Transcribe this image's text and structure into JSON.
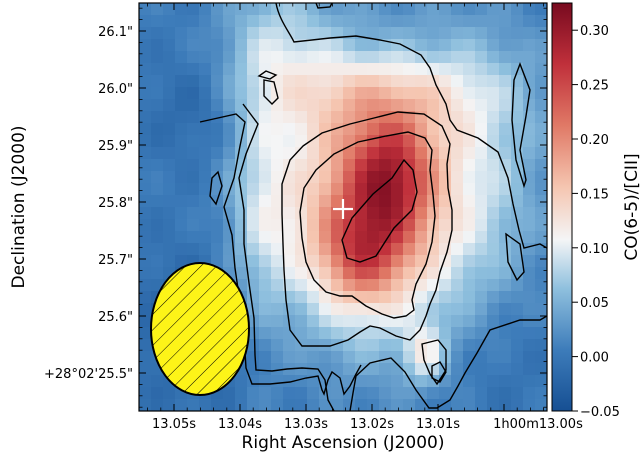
{
  "chart_data": {
    "type": "heatmap",
    "title": "",
    "xlabel": "Right Ascension (J2000)",
    "ylabel": "Declination (J2000)",
    "colorbar_label": "CO(6-5)/[CII]",
    "x_ticks": [
      "13.05s",
      "13.04s",
      "13.03s",
      "13.02s",
      "13.01s",
      "1h00m13.00s"
    ],
    "y_ticks": [
      "26.1\"",
      "26.0\"",
      "25.9\"",
      "25.8\"",
      "25.7\"",
      "25.6\"",
      "+28°02'25.5\""
    ],
    "colorbar_ticks": [
      "0.30",
      "0.25",
      "0.20",
      "0.15",
      "0.10",
      "0.05",
      "0.00",
      "−0.05"
    ],
    "colorbar_range": [
      -0.05,
      0.325
    ],
    "colormap": "RdBu_r",
    "colors": {
      "low": "#1f5fa8",
      "mid": "#f7f7f7",
      "high": "#8b0a1e"
    },
    "features": {
      "peak_value": 0.32,
      "marker": "white cross at the continuum position",
      "beam": "hatched yellow ellipse, lower left"
    }
  }
}
